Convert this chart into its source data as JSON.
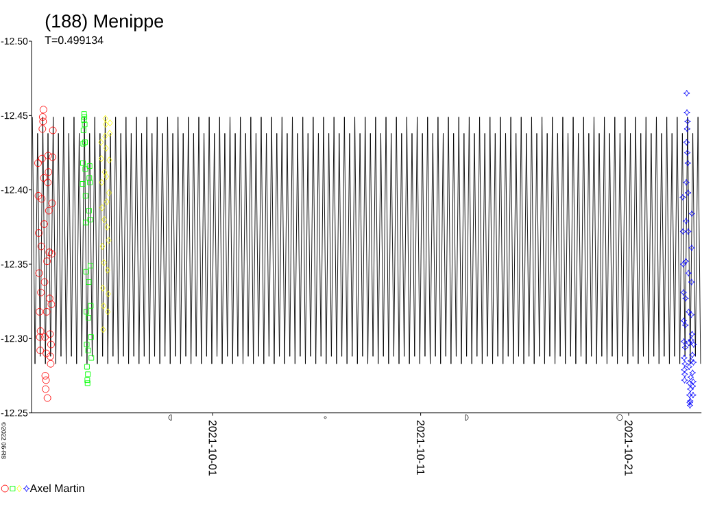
{
  "chart_data": {
    "type": "scatter",
    "title": "(188) Menippe",
    "subtitle": "T=0.499134",
    "annotations": [
      "©2022 06-R8"
    ],
    "xlim": [
      "2021-09-22T07:00",
      "2021-10-24T12:00"
    ],
    "xticks": [
      "2021-10-01",
      "2021-10-11",
      "2021-10-21"
    ],
    "ylim": [
      -12.25,
      -12.5
    ],
    "yticks": [
      {
        "value": -12.5,
        "label": "-12.50"
      },
      -12.45,
      {
        "value": -12.4,
        "label": "-12.40"
      },
      -12.35,
      {
        "value": -12.3,
        "label": "-12.30"
      },
      -12.25
    ],
    "legend": "bottom left",
    "series": [
      {
        "color": "#ff0000",
        "marker": "circle",
        "x": [
          "2021-09-22T14:30",
          "2021-09-22T14:55",
          "2021-09-22T15:20",
          "2021-09-22T15:45",
          "2021-09-22T16:10",
          "2021-09-22T16:35",
          "2021-09-22T17:00",
          "2021-09-22T17:25",
          "2021-09-22T17:50",
          "2021-09-22T18:15",
          "2021-09-22T18:40",
          "2021-09-22T19:05",
          "2021-09-22T19:30",
          "2021-09-22T19:55",
          "2021-09-22T20:20",
          "2021-09-22T20:45",
          "2021-09-22T21:10",
          "2021-09-22T21:35",
          "2021-09-22T22:00",
          "2021-09-22T22:25",
          "2021-09-22T22:50",
          "2021-09-22T23:15",
          "2021-09-22T23:40",
          "2021-09-23T00:05",
          "2021-09-23T00:30",
          "2021-09-23T00:55",
          "2021-09-23T01:20",
          "2021-09-23T01:45",
          "2021-09-23T02:10",
          "2021-09-23T02:35",
          "2021-09-23T03:00",
          "2021-09-23T03:25",
          "2021-09-23T03:50",
          "2021-09-23T04:15",
          "2021-09-23T04:40",
          "2021-09-23T05:05",
          "2021-09-23T05:30",
          "2021-09-23T05:55",
          "2021-09-23T06:20",
          "2021-09-23T06:45",
          "2021-09-23T07:10",
          "2021-09-23T07:35"
        ],
        "values": [
          -12.418,
          -12.396,
          -12.371,
          -12.344,
          -12.318,
          -12.301,
          -12.292,
          -12.305,
          -12.331,
          -12.362,
          -12.394,
          -12.421,
          -12.441,
          -12.449,
          -12.446,
          -12.454,
          -12.408,
          -12.377,
          -12.338,
          -12.301,
          -12.275,
          -12.266,
          -12.272,
          -12.29,
          -12.318,
          -12.352,
          -12.26,
          -12.405,
          -12.423,
          -12.412,
          -12.386,
          -12.358,
          -12.327,
          -12.303,
          -12.288,
          -12.283,
          -12.296,
          -12.323,
          -12.357,
          -12.391,
          -12.422,
          -12.44
        ]
      },
      {
        "color": "#00ff00",
        "marker": "square",
        "x": [
          "2021-09-24T18:00",
          "2021-09-24T18:20",
          "2021-09-24T18:40",
          "2021-09-24T19:00",
          "2021-09-24T19:20",
          "2021-09-24T19:40",
          "2021-09-24T20:00",
          "2021-09-24T20:20",
          "2021-09-24T20:40",
          "2021-09-24T21:00",
          "2021-09-24T21:20",
          "2021-09-24T21:40",
          "2021-09-24T22:00",
          "2021-09-24T22:20",
          "2021-09-24T22:40",
          "2021-09-24T23:00",
          "2021-09-24T23:20",
          "2021-09-24T23:40",
          "2021-09-25T00:00",
          "2021-09-25T00:20",
          "2021-09-25T00:40",
          "2021-09-25T01:00",
          "2021-09-25T01:20",
          "2021-09-25T01:40",
          "2021-09-25T02:00",
          "2021-09-25T02:20",
          "2021-09-25T02:40",
          "2021-09-25T03:00",
          "2021-09-25T03:20",
          "2021-09-25T03:40",
          "2021-09-25T04:00"
        ],
        "values": [
          -12.404,
          -12.418,
          -12.431,
          -12.44,
          -12.447,
          -12.451,
          -12.449,
          -12.444,
          -12.432,
          -12.414,
          -12.396,
          -12.378,
          -12.345,
          -12.318,
          -12.296,
          -12.281,
          -12.272,
          -12.27,
          -12.276,
          -12.292,
          -12.314,
          -12.338,
          -12.386,
          -12.408,
          -12.416,
          -12.405,
          -12.38,
          -12.349,
          -12.322,
          -12.301,
          -12.287
        ]
      },
      {
        "color": "#ffff00",
        "marker": "diamond",
        "x": [
          "2021-09-25T15:10",
          "2021-09-25T15:35",
          "2021-09-25T16:00",
          "2021-09-25T16:25",
          "2021-09-25T16:50",
          "2021-09-25T17:15",
          "2021-09-25T17:40",
          "2021-09-25T18:05",
          "2021-09-25T18:30",
          "2021-09-25T18:55",
          "2021-09-25T19:20",
          "2021-09-25T19:45",
          "2021-09-25T20:10",
          "2021-09-25T20:35",
          "2021-09-25T21:00",
          "2021-09-25T21:25",
          "2021-09-25T21:50",
          "2021-09-25T22:15",
          "2021-09-25T22:40",
          "2021-09-25T23:05",
          "2021-09-25T23:30",
          "2021-09-25T23:55",
          "2021-09-26T00:20",
          "2021-09-26T00:45",
          "2021-09-26T01:10",
          "2021-09-26T01:35"
        ],
        "values": [
          -12.432,
          -12.421,
          -12.405,
          -12.388,
          -12.362,
          -12.334,
          -12.306,
          -12.322,
          -12.351,
          -12.38,
          -12.412,
          -12.436,
          -12.448,
          -12.444,
          -12.428,
          -12.409,
          -12.392,
          -12.375,
          -12.346,
          -12.318,
          -12.33,
          -12.366,
          -12.398,
          -12.42,
          -12.438,
          -12.445
        ]
      },
      {
        "name": "Axel Martin",
        "color": "#0000ff",
        "marker": "star",
        "x": [
          "2021-10-23T14:30",
          "2021-10-23T14:45",
          "2021-10-23T15:00",
          "2021-10-23T15:15",
          "2021-10-23T15:30",
          "2021-10-23T15:45",
          "2021-10-23T16:00",
          "2021-10-23T16:15",
          "2021-10-23T16:30",
          "2021-10-23T16:45",
          "2021-10-23T17:00",
          "2021-10-23T17:15",
          "2021-10-23T17:30",
          "2021-10-23T17:45",
          "2021-10-23T18:00",
          "2021-10-23T18:15",
          "2021-10-23T18:30",
          "2021-10-23T18:45",
          "2021-10-23T19:00",
          "2021-10-23T19:15",
          "2021-10-23T19:30",
          "2021-10-23T19:45",
          "2021-10-23T20:00",
          "2021-10-23T20:15",
          "2021-10-23T20:30",
          "2021-10-23T20:45",
          "2021-10-23T21:00",
          "2021-10-23T21:15",
          "2021-10-23T21:30",
          "2021-10-23T21:45",
          "2021-10-23T22:00",
          "2021-10-23T22:15",
          "2021-10-23T22:30",
          "2021-10-23T22:45",
          "2021-10-23T23:00",
          "2021-10-23T23:15",
          "2021-10-23T23:30",
          "2021-10-23T23:45",
          "2021-10-24T00:00",
          "2021-10-24T00:15",
          "2021-10-24T00:30",
          "2021-10-24T00:45",
          "2021-10-24T01:00",
          "2021-10-24T01:15",
          "2021-10-24T01:30",
          "2021-10-24T01:45",
          "2021-10-24T02:00",
          "2021-10-24T02:15",
          "2021-10-24T02:30",
          "2021-10-24T02:45",
          "2021-10-24T03:00"
        ],
        "values": [
          -12.395,
          -12.372,
          -12.35,
          -12.331,
          -12.312,
          -12.298,
          -12.287,
          -12.279,
          -12.272,
          -12.276,
          -12.283,
          -12.294,
          -12.309,
          -12.327,
          -12.352,
          -12.379,
          -12.405,
          -12.432,
          -12.465,
          -12.452,
          -12.441,
          -12.425,
          -12.446,
          -12.418,
          -12.398,
          -12.372,
          -12.344,
          -12.318,
          -12.297,
          -12.281,
          -12.27,
          -12.262,
          -12.257,
          -12.255,
          -12.258,
          -12.266,
          -12.274,
          -12.285,
          -12.299,
          -12.316,
          -12.338,
          -12.361,
          -12.384,
          -12.303,
          -12.289,
          -12.277,
          -12.268,
          -12.262,
          -12.271,
          -12.284,
          -12.296
        ]
      },
      {
        "type": "line",
        "color": "#000000",
        "x": [
          "2021-09-22T08:00",
          "2021-09-22T11:00",
          "2021-09-22T14:00",
          "2021-09-22T17:00",
          "2021-09-22T20:00",
          "2021-09-22T23:00",
          "2021-09-23T02:00",
          "2021-09-23T05:00",
          "2021-09-23T08:00",
          "2021-09-23T11:00",
          "2021-09-23T14:00",
          "2021-09-23T17:00",
          "2021-09-23T20:00",
          "2021-09-23T23:00",
          "2021-09-24T02:00",
          "2021-09-24T05:00",
          "2021-09-24T08:00",
          "2021-09-24T11:00",
          "2021-09-24T14:00",
          "2021-09-24T17:00",
          "2021-09-24T20:00",
          "2021-09-24T23:00",
          "2021-09-25T02:00",
          "2021-09-25T05:00",
          "2021-09-25T08:00",
          "2021-09-25T11:00",
          "2021-09-25T14:00",
          "2021-09-25T17:00",
          "2021-09-25T20:00",
          "2021-09-25T23:00",
          "2021-09-26T02:00",
          "2021-09-26T05:00",
          "2021-09-26T08:00",
          "2021-09-26T11:00",
          "2021-09-26T14:00",
          "2021-09-26T17:00",
          "2021-09-26T20:00",
          "2021-09-26T23:00",
          "2021-09-27T02:00",
          "2021-09-27T05:00",
          "2021-09-27T08:00",
          "2021-09-27T11:00",
          "2021-09-27T14:00",
          "2021-09-27T17:00",
          "2021-09-27T20:00",
          "2021-09-27T23:00",
          "2021-09-28T02:00",
          "2021-09-28T05:00",
          "2021-09-28T08:00",
          "2021-09-28T11:00",
          "2021-09-28T14:00",
          "2021-09-28T17:00",
          "2021-09-28T20:00",
          "2021-09-28T23:00",
          "2021-09-29T02:00",
          "2021-09-29T05:00",
          "2021-09-29T08:00",
          "2021-09-29T11:00",
          "2021-09-29T14:00",
          "2021-09-29T17:00",
          "2021-09-29T20:00",
          "2021-09-29T23:00",
          "2021-09-30T02:00",
          "2021-09-30T05:00",
          "2021-09-30T08:00",
          "2021-09-30T11:00",
          "2021-09-30T14:00",
          "2021-09-30T17:00",
          "2021-09-30T20:00",
          "2021-09-30T23:00",
          "2021-10-01T02:00",
          "2021-10-01T05:00",
          "2021-10-01T08:00",
          "2021-10-01T11:00",
          "2021-10-01T14:00",
          "2021-10-01T17:00",
          "2021-10-01T20:00",
          "2021-10-01T23:00",
          "2021-10-02T02:00",
          "2021-10-02T05:00",
          "2021-10-02T08:00",
          "2021-10-02T11:00",
          "2021-10-02T14:00",
          "2021-10-02T17:00",
          "2021-10-02T20:00",
          "2021-10-02T23:00",
          "2021-10-03T02:00",
          "2021-10-03T05:00",
          "2021-10-03T08:00",
          "2021-10-03T11:00",
          "2021-10-03T14:00",
          "2021-10-03T17:00",
          "2021-10-03T20:00",
          "2021-10-03T23:00",
          "2021-10-04T02:00",
          "2021-10-04T05:00",
          "2021-10-04T08:00",
          "2021-10-04T11:00",
          "2021-10-04T14:00",
          "2021-10-04T17:00",
          "2021-10-04T20:00",
          "2021-10-04T23:00",
          "2021-10-05T02:00",
          "2021-10-05T05:00",
          "2021-10-05T08:00",
          "2021-10-05T11:00",
          "2021-10-05T14:00",
          "2021-10-05T17:00",
          "2021-10-05T20:00",
          "2021-10-05T23:00",
          "2021-10-06T02:00",
          "2021-10-06T05:00",
          "2021-10-06T08:00",
          "2021-10-06T11:00",
          "2021-10-06T14:00",
          "2021-10-06T17:00",
          "2021-10-06T20:00",
          "2021-10-06T23:00",
          "2021-10-07T02:00",
          "2021-10-07T05:00",
          "2021-10-07T08:00",
          "2021-10-07T11:00",
          "2021-10-07T14:00",
          "2021-10-07T17:00",
          "2021-10-07T20:00",
          "2021-10-07T23:00",
          "2021-10-08T02:00",
          "2021-10-08T05:00",
          "2021-10-08T08:00",
          "2021-10-08T11:00",
          "2021-10-08T14:00",
          "2021-10-08T17:00",
          "2021-10-08T20:00",
          "2021-10-08T23:00",
          "2021-10-09T02:00",
          "2021-10-09T05:00",
          "2021-10-09T08:00",
          "2021-10-09T11:00",
          "2021-10-09T14:00",
          "2021-10-09T17:00",
          "2021-10-09T20:00",
          "2021-10-09T23:00",
          "2021-10-10T02:00",
          "2021-10-10T05:00",
          "2021-10-10T08:00",
          "2021-10-10T11:00",
          "2021-10-10T14:00",
          "2021-10-10T17:00",
          "2021-10-10T20:00",
          "2021-10-10T23:00",
          "2021-10-11T02:00",
          "2021-10-11T05:00",
          "2021-10-11T08:00",
          "2021-10-11T11:00",
          "2021-10-11T14:00",
          "2021-10-11T17:00",
          "2021-10-11T20:00",
          "2021-10-11T23:00",
          "2021-10-12T02:00",
          "2021-10-12T05:00",
          "2021-10-12T08:00",
          "2021-10-12T11:00",
          "2021-10-12T14:00",
          "2021-10-12T17:00",
          "2021-10-12T20:00",
          "2021-10-12T23:00",
          "2021-10-13T02:00",
          "2021-10-13T05:00",
          "2021-10-13T08:00",
          "2021-10-13T11:00",
          "2021-10-13T14:00",
          "2021-10-13T17:00",
          "2021-10-13T20:00",
          "2021-10-13T23:00",
          "2021-10-14T02:00",
          "2021-10-14T05:00",
          "2021-10-14T08:00",
          "2021-10-14T11:00",
          "2021-10-14T14:00",
          "2021-10-14T17:00",
          "2021-10-14T20:00",
          "2021-10-14T23:00",
          "2021-10-15T02:00",
          "2021-10-15T05:00",
          "2021-10-15T08:00",
          "2021-10-15T11:00",
          "2021-10-15T14:00",
          "2021-10-15T17:00",
          "2021-10-15T20:00",
          "2021-10-15T23:00",
          "2021-10-16T02:00",
          "2021-10-16T05:00",
          "2021-10-16T08:00",
          "2021-10-16T11:00",
          "2021-10-16T14:00",
          "2021-10-16T17:00",
          "2021-10-16T20:00",
          "2021-10-16T23:00",
          "2021-10-17T02:00",
          "2021-10-17T05:00",
          "2021-10-17T08:00",
          "2021-10-17T11:00",
          "2021-10-17T14:00",
          "2021-10-17T17:00",
          "2021-10-17T20:00",
          "2021-10-17T23:00",
          "2021-10-18T02:00",
          "2021-10-18T05:00",
          "2021-10-18T08:00",
          "2021-10-18T11:00",
          "2021-10-18T14:00",
          "2021-10-18T17:00",
          "2021-10-18T20:00",
          "2021-10-18T23:00",
          "2021-10-19T02:00",
          "2021-10-19T05:00",
          "2021-10-19T08:00",
          "2021-10-19T11:00",
          "2021-10-19T14:00",
          "2021-10-19T17:00",
          "2021-10-19T20:00",
          "2021-10-19T23:00",
          "2021-10-20T02:00",
          "2021-10-20T05:00",
          "2021-10-20T08:00",
          "2021-10-20T11:00",
          "2021-10-20T14:00",
          "2021-10-20T17:00",
          "2021-10-20T20:00",
          "2021-10-20T23:00",
          "2021-10-21T02:00",
          "2021-10-21T05:00",
          "2021-10-21T08:00",
          "2021-10-21T11:00",
          "2021-10-21T14:00",
          "2021-10-21T17:00",
          "2021-10-21T20:00",
          "2021-10-21T23:00",
          "2021-10-22T02:00",
          "2021-10-22T05:00",
          "2021-10-22T08:00",
          "2021-10-22T11:00",
          "2021-10-22T14:00",
          "2021-10-22T17:00",
          "2021-10-22T20:00",
          "2021-10-22T23:00",
          "2021-10-23T02:00",
          "2021-10-23T05:00",
          "2021-10-23T08:00",
          "2021-10-23T11:00",
          "2021-10-23T14:00",
          "2021-10-23T17:00",
          "2021-10-23T20:00",
          "2021-10-23T23:00",
          "2021-10-24T02:00",
          "2021-10-24T05:00",
          "2021-10-24T08:00",
          "2021-10-24T11:00"
        ],
        "values": [
          -12.449,
          -12.283,
          -12.438,
          -12.288,
          -12.449,
          -12.283,
          -12.438,
          -12.288,
          -12.449,
          -12.283,
          -12.438,
          -12.288,
          -12.449,
          -12.283,
          -12.438,
          -12.288,
          -12.449,
          -12.283,
          -12.438,
          -12.288,
          -12.449,
          -12.283,
          -12.438,
          -12.288,
          -12.449,
          -12.283,
          -12.438,
          -12.288,
          -12.449,
          -12.283,
          -12.438,
          -12.288,
          -12.449,
          -12.283,
          -12.438,
          -12.288,
          -12.449,
          -12.283,
          -12.438,
          -12.288,
          -12.449,
          -12.283,
          -12.438,
          -12.288,
          -12.449,
          -12.283,
          -12.438,
          -12.288,
          -12.449,
          -12.283,
          -12.438,
          -12.288,
          -12.449,
          -12.283,
          -12.438,
          -12.288,
          -12.449,
          -12.283,
          -12.438,
          -12.288,
          -12.449,
          -12.283,
          -12.438,
          -12.288,
          -12.449,
          -12.283,
          -12.438,
          -12.288,
          -12.449,
          -12.283,
          -12.438,
          -12.288,
          -12.449,
          -12.283,
          -12.438,
          -12.288,
          -12.449,
          -12.283,
          -12.438,
          -12.288,
          -12.449,
          -12.283,
          -12.438,
          -12.288,
          -12.449,
          -12.283,
          -12.438,
          -12.288,
          -12.449,
          -12.283,
          -12.438,
          -12.288,
          -12.449,
          -12.283,
          -12.438,
          -12.288,
          -12.449,
          -12.283,
          -12.438,
          -12.288,
          -12.449,
          -12.283,
          -12.438,
          -12.288,
          -12.449,
          -12.283,
          -12.438,
          -12.288,
          -12.449,
          -12.283,
          -12.438,
          -12.288,
          -12.449,
          -12.283,
          -12.438,
          -12.288,
          -12.449,
          -12.283,
          -12.438,
          -12.288,
          -12.449,
          -12.283,
          -12.438,
          -12.288,
          -12.449,
          -12.283,
          -12.438,
          -12.288,
          -12.449,
          -12.283,
          -12.438,
          -12.288,
          -12.449,
          -12.283,
          -12.438,
          -12.288,
          -12.449,
          -12.283,
          -12.438,
          -12.288,
          -12.449,
          -12.283,
          -12.438,
          -12.288,
          -12.449,
          -12.283,
          -12.438,
          -12.288,
          -12.449,
          -12.283,
          -12.438,
          -12.288,
          -12.449,
          -12.283,
          -12.438,
          -12.288,
          -12.449,
          -12.283,
          -12.438,
          -12.288,
          -12.449,
          -12.283,
          -12.438,
          -12.288,
          -12.449,
          -12.283,
          -12.438,
          -12.288,
          -12.449,
          -12.283,
          -12.438,
          -12.288,
          -12.449,
          -12.283,
          -12.438,
          -12.288,
          -12.449,
          -12.283,
          -12.438,
          -12.288,
          -12.449,
          -12.283,
          -12.438,
          -12.288,
          -12.449,
          -12.283,
          -12.438,
          -12.288,
          -12.449,
          -12.283,
          -12.438,
          -12.288,
          -12.449,
          -12.283,
          -12.438,
          -12.288,
          -12.449,
          -12.283,
          -12.438,
          -12.288,
          -12.449,
          -12.283,
          -12.438,
          -12.288,
          -12.449,
          -12.283,
          -12.438,
          -12.288,
          -12.449,
          -12.283,
          -12.438,
          -12.288,
          -12.449,
          -12.283,
          -12.438,
          -12.288,
          -12.449,
          -12.283,
          -12.438,
          -12.288,
          -12.449,
          -12.283,
          -12.438,
          -12.288,
          -12.449,
          -12.283,
          -12.438,
          -12.288,
          -12.449,
          -12.283,
          -12.438,
          -12.288,
          -12.449,
          -12.283,
          -12.438,
          -12.288,
          -12.449,
          -12.283,
          -12.438,
          -12.288,
          -12.449,
          -12.283,
          -12.438,
          -12.288,
          -12.449,
          -12.283,
          -12.438,
          -12.288,
          -12.449,
          -12.283,
          -12.438,
          -12.288,
          -12.449,
          -12.283,
          -12.438,
          -12.288,
          -12.449,
          -12.283
        ]
      }
    ]
  }
}
